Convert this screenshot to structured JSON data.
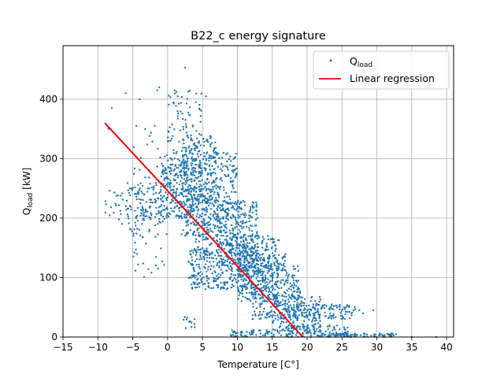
{
  "chart_data": {
    "type": "scatter",
    "title": "B22_c energy signature",
    "xlabel": "Temperature [C°]",
    "ylabel": {
      "main": "Q",
      "sub": "load",
      "unit": " [kW]"
    },
    "xlim": [
      -15,
      41
    ],
    "ylim": [
      0,
      490
    ],
    "xticks": [
      -15,
      -10,
      -5,
      0,
      5,
      10,
      15,
      20,
      25,
      30,
      35,
      40
    ],
    "yticks": [
      0,
      100,
      200,
      300,
      400
    ],
    "grid": true,
    "legend_position": "top-right",
    "series": [
      {
        "name": {
          "main": "Q",
          "sub": "load"
        },
        "type": "scatter",
        "color": "#1f77b4",
        "clusters": [
          {
            "x": [
              -9,
              -1
            ],
            "y": [
              190,
              250
            ],
            "n": 70
          },
          {
            "x": [
              -6,
              0
            ],
            "y": [
              170,
              260
            ],
            "n": 80
          },
          {
            "x": [
              -5,
              0
            ],
            "y": [
              100,
              360
            ],
            "n": 60
          },
          {
            "x": [
              -1,
              4
            ],
            "y": [
              200,
              300
            ],
            "n": 260
          },
          {
            "x": [
              0,
              5
            ],
            "y": [
              230,
              420
            ],
            "n": 140
          },
          {
            "x": [
              2,
              7
            ],
            "y": [
              170,
              340
            ],
            "n": 260
          },
          {
            "x": [
              4,
              10
            ],
            "y": [
              150,
              310
            ],
            "n": 300
          },
          {
            "x": [
              7,
              13
            ],
            "y": [
              110,
              230
            ],
            "n": 320
          },
          {
            "x": [
              3,
              12
            ],
            "y": [
              80,
              150
            ],
            "n": 320
          },
          {
            "x": [
              10,
              16
            ],
            "y": [
              60,
              170
            ],
            "n": 280
          },
          {
            "x": [
              12,
              19
            ],
            "y": [
              30,
              120
            ],
            "n": 260
          },
          {
            "x": [
              15,
              22
            ],
            "y": [
              10,
              70
            ],
            "n": 180
          },
          {
            "x": [
              18,
              27
            ],
            "y": [
              30,
              55
            ],
            "n": 110
          },
          {
            "x": [
              17,
              26
            ],
            "y": [
              0,
              20
            ],
            "n": 110
          },
          {
            "x": [
              9,
              18
            ],
            "y": [
              0,
              12
            ],
            "n": 70
          },
          {
            "x": [
              22,
              33
            ],
            "y": [
              0,
              6
            ],
            "n": 80
          },
          {
            "x": [
              2,
              4
            ],
            "y": [
              10,
              40
            ],
            "n": 12
          },
          {
            "x": [
              12,
              17
            ],
            "y": [
              110,
              140
            ],
            "n": 50
          }
        ],
        "outliers": [
          {
            "x": 2.5,
            "y": 453
          },
          {
            "x": -1.2,
            "y": 420
          },
          {
            "x": -1.5,
            "y": 415
          },
          {
            "x": -6,
            "y": 410
          },
          {
            "x": -8,
            "y": 385
          },
          {
            "x": -4,
            "y": 400
          },
          {
            "x": -8.5,
            "y": 350
          },
          {
            "x": 27.5,
            "y": 45
          },
          {
            "x": 29.5,
            "y": 45
          },
          {
            "x": 28,
            "y": 40
          },
          {
            "x": 38.5,
            "y": 0
          },
          {
            "x": 35,
            "y": 0
          },
          {
            "x": 5.5,
            "y": 405
          }
        ]
      },
      {
        "name": "Linear regression",
        "type": "line",
        "color": "#ff0000",
        "x": [
          -9,
          19.4
        ],
        "y": [
          360,
          0
        ]
      }
    ]
  }
}
